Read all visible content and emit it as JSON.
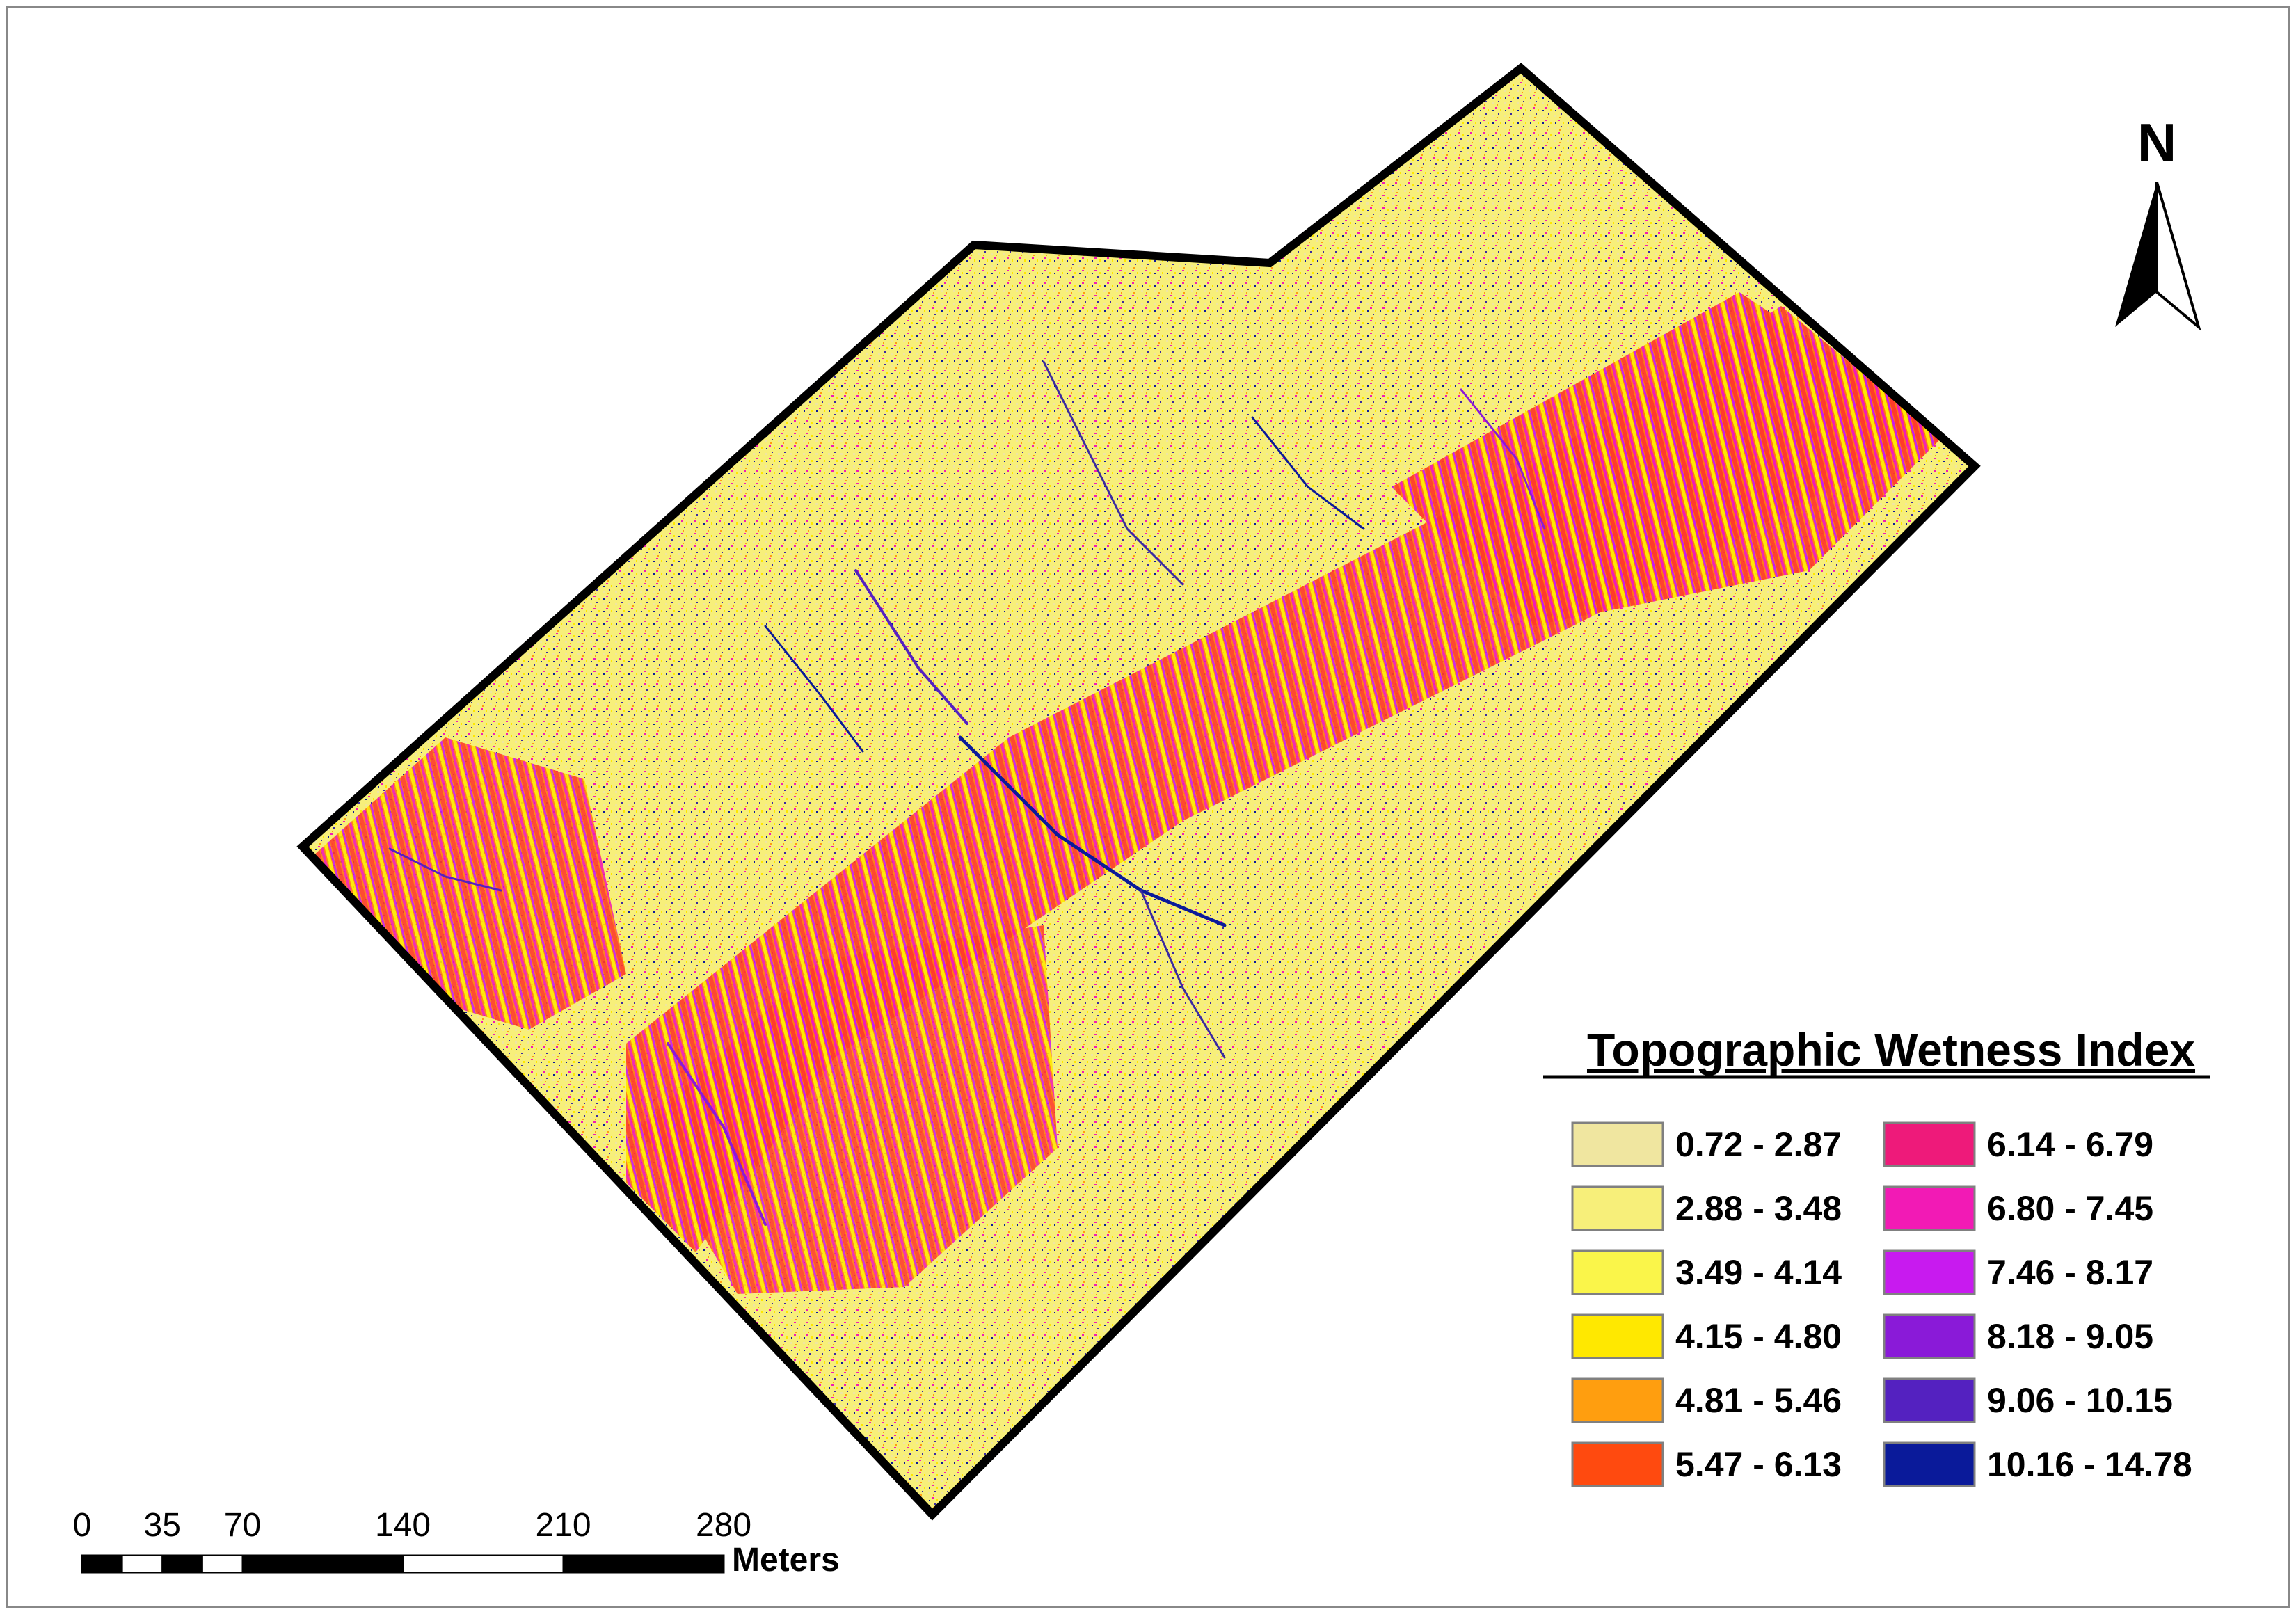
{
  "legend": {
    "title": "Topographic Wetness Index",
    "classes": [
      {
        "label": "0.72 - 2.87",
        "color": "#F0E6A0"
      },
      {
        "label": "2.88 - 3.48",
        "color": "#F7EF7A"
      },
      {
        "label": "3.49 - 4.14",
        "color": "#FAF54A"
      },
      {
        "label": "4.15 - 4.80",
        "color": "#FFE800"
      },
      {
        "label": "4.81 - 5.46",
        "color": "#FF9E0F"
      },
      {
        "label": "5.47 - 6.13",
        "color": "#FF4A0F"
      },
      {
        "label": "6.14 - 6.79",
        "color": "#EE1A7A"
      },
      {
        "label": "6.80 - 7.45",
        "color": "#F21AB5"
      },
      {
        "label": "7.46 - 8.17",
        "color": "#C81AEF"
      },
      {
        "label": "8.18 - 9.05",
        "color": "#8A1AD8"
      },
      {
        "label": "9.06 - 10.15",
        "color": "#5421C0"
      },
      {
        "label": "10.16 - 14.78",
        "color": "#0A1A9A"
      }
    ]
  },
  "north_arrow": {
    "label": "N"
  },
  "scale_bar": {
    "ticks": [
      "0",
      "35",
      "70",
      "140",
      "210",
      "280"
    ],
    "unit": "Meters"
  }
}
